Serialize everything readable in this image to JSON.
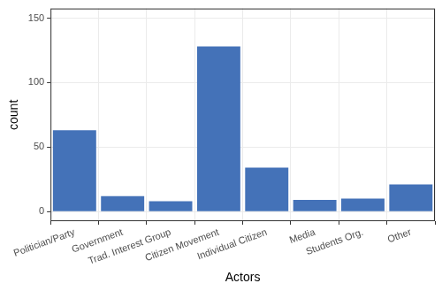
{
  "chart_data": {
    "type": "bar",
    "x_label": "Actors",
    "y_label": "count",
    "categories": [
      "Politician/Party",
      "Government",
      "Trad. Interest Group",
      "Citizen Movement",
      "Individual Citizen",
      "Media",
      "Students Org.",
      "Other"
    ],
    "values": [
      63,
      12,
      8,
      128,
      34,
      9,
      10,
      21
    ],
    "color": "#4472b8",
    "ylim": [
      -7.5,
      157.5
    ],
    "yticks": [
      0,
      50,
      100,
      150
    ],
    "grid": true
  }
}
